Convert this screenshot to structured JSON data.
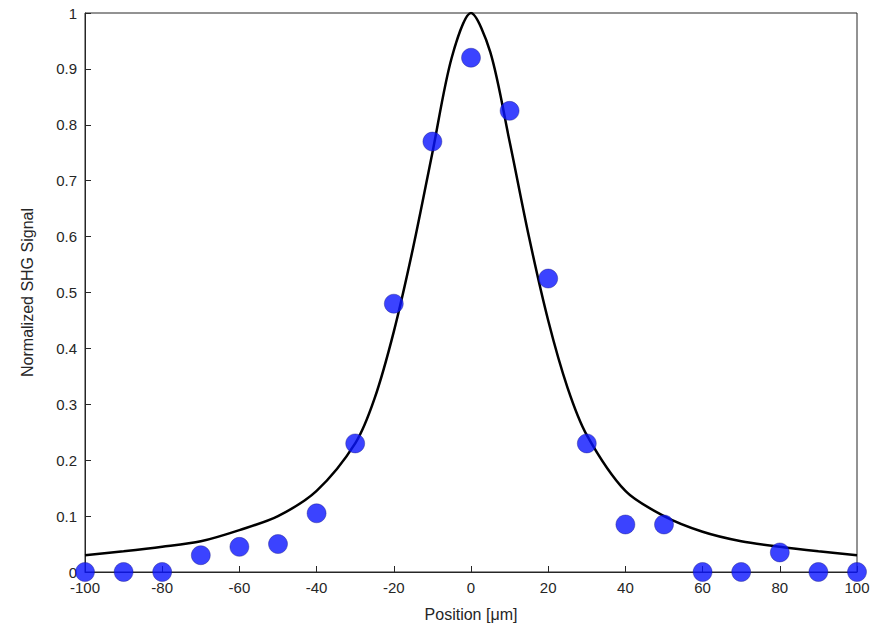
{
  "chart_data": {
    "type": "scatter",
    "x_label": "Position [μm]",
    "y_label": "Normalized SHG Signal",
    "xlim": [
      -100,
      100
    ],
    "xticks": [
      -100,
      -80,
      -60,
      -40,
      -20,
      0,
      20,
      40,
      60,
      80,
      100
    ],
    "ylim": [
      0,
      1
    ],
    "yticks": [
      0,
      0.1,
      0.2,
      0.3,
      0.4,
      0.5,
      0.6,
      0.7,
      0.8,
      0.9,
      1
    ],
    "grid": false,
    "series": [
      {
        "type": "scatter",
        "color": "#0a14ff",
        "marker": "circle",
        "x": [
          -100,
          -90,
          -80,
          -70,
          -60,
          -50,
          -40,
          -30,
          -20,
          -10,
          0,
          10,
          20,
          30,
          40,
          50,
          60,
          70,
          80,
          90,
          100
        ],
        "values": [
          0,
          0,
          0,
          0.03,
          0.045,
          0.05,
          0.105,
          0.23,
          0.48,
          0.77,
          0.92,
          0.825,
          0.525,
          0.23,
          0.085,
          0.085,
          0,
          0,
          0.035,
          0,
          0
        ]
      },
      {
        "type": "line",
        "color": "#000000",
        "line_style": "solid",
        "x": [
          -100,
          -90,
          -80,
          -70,
          -60,
          -50,
          -40,
          -30,
          -25,
          -20,
          -15,
          -10,
          -5,
          0,
          5,
          10,
          15,
          20,
          25,
          30,
          40,
          50,
          60,
          70,
          80,
          90,
          100
        ],
        "values": [
          0.03,
          0.037,
          0.045,
          0.055,
          0.075,
          0.1,
          0.145,
          0.23,
          0.31,
          0.43,
          0.58,
          0.75,
          0.92,
          1.0,
          0.93,
          0.77,
          0.6,
          0.45,
          0.33,
          0.245,
          0.145,
          0.1,
          0.072,
          0.055,
          0.045,
          0.037,
          0.03
        ]
      }
    ]
  }
}
